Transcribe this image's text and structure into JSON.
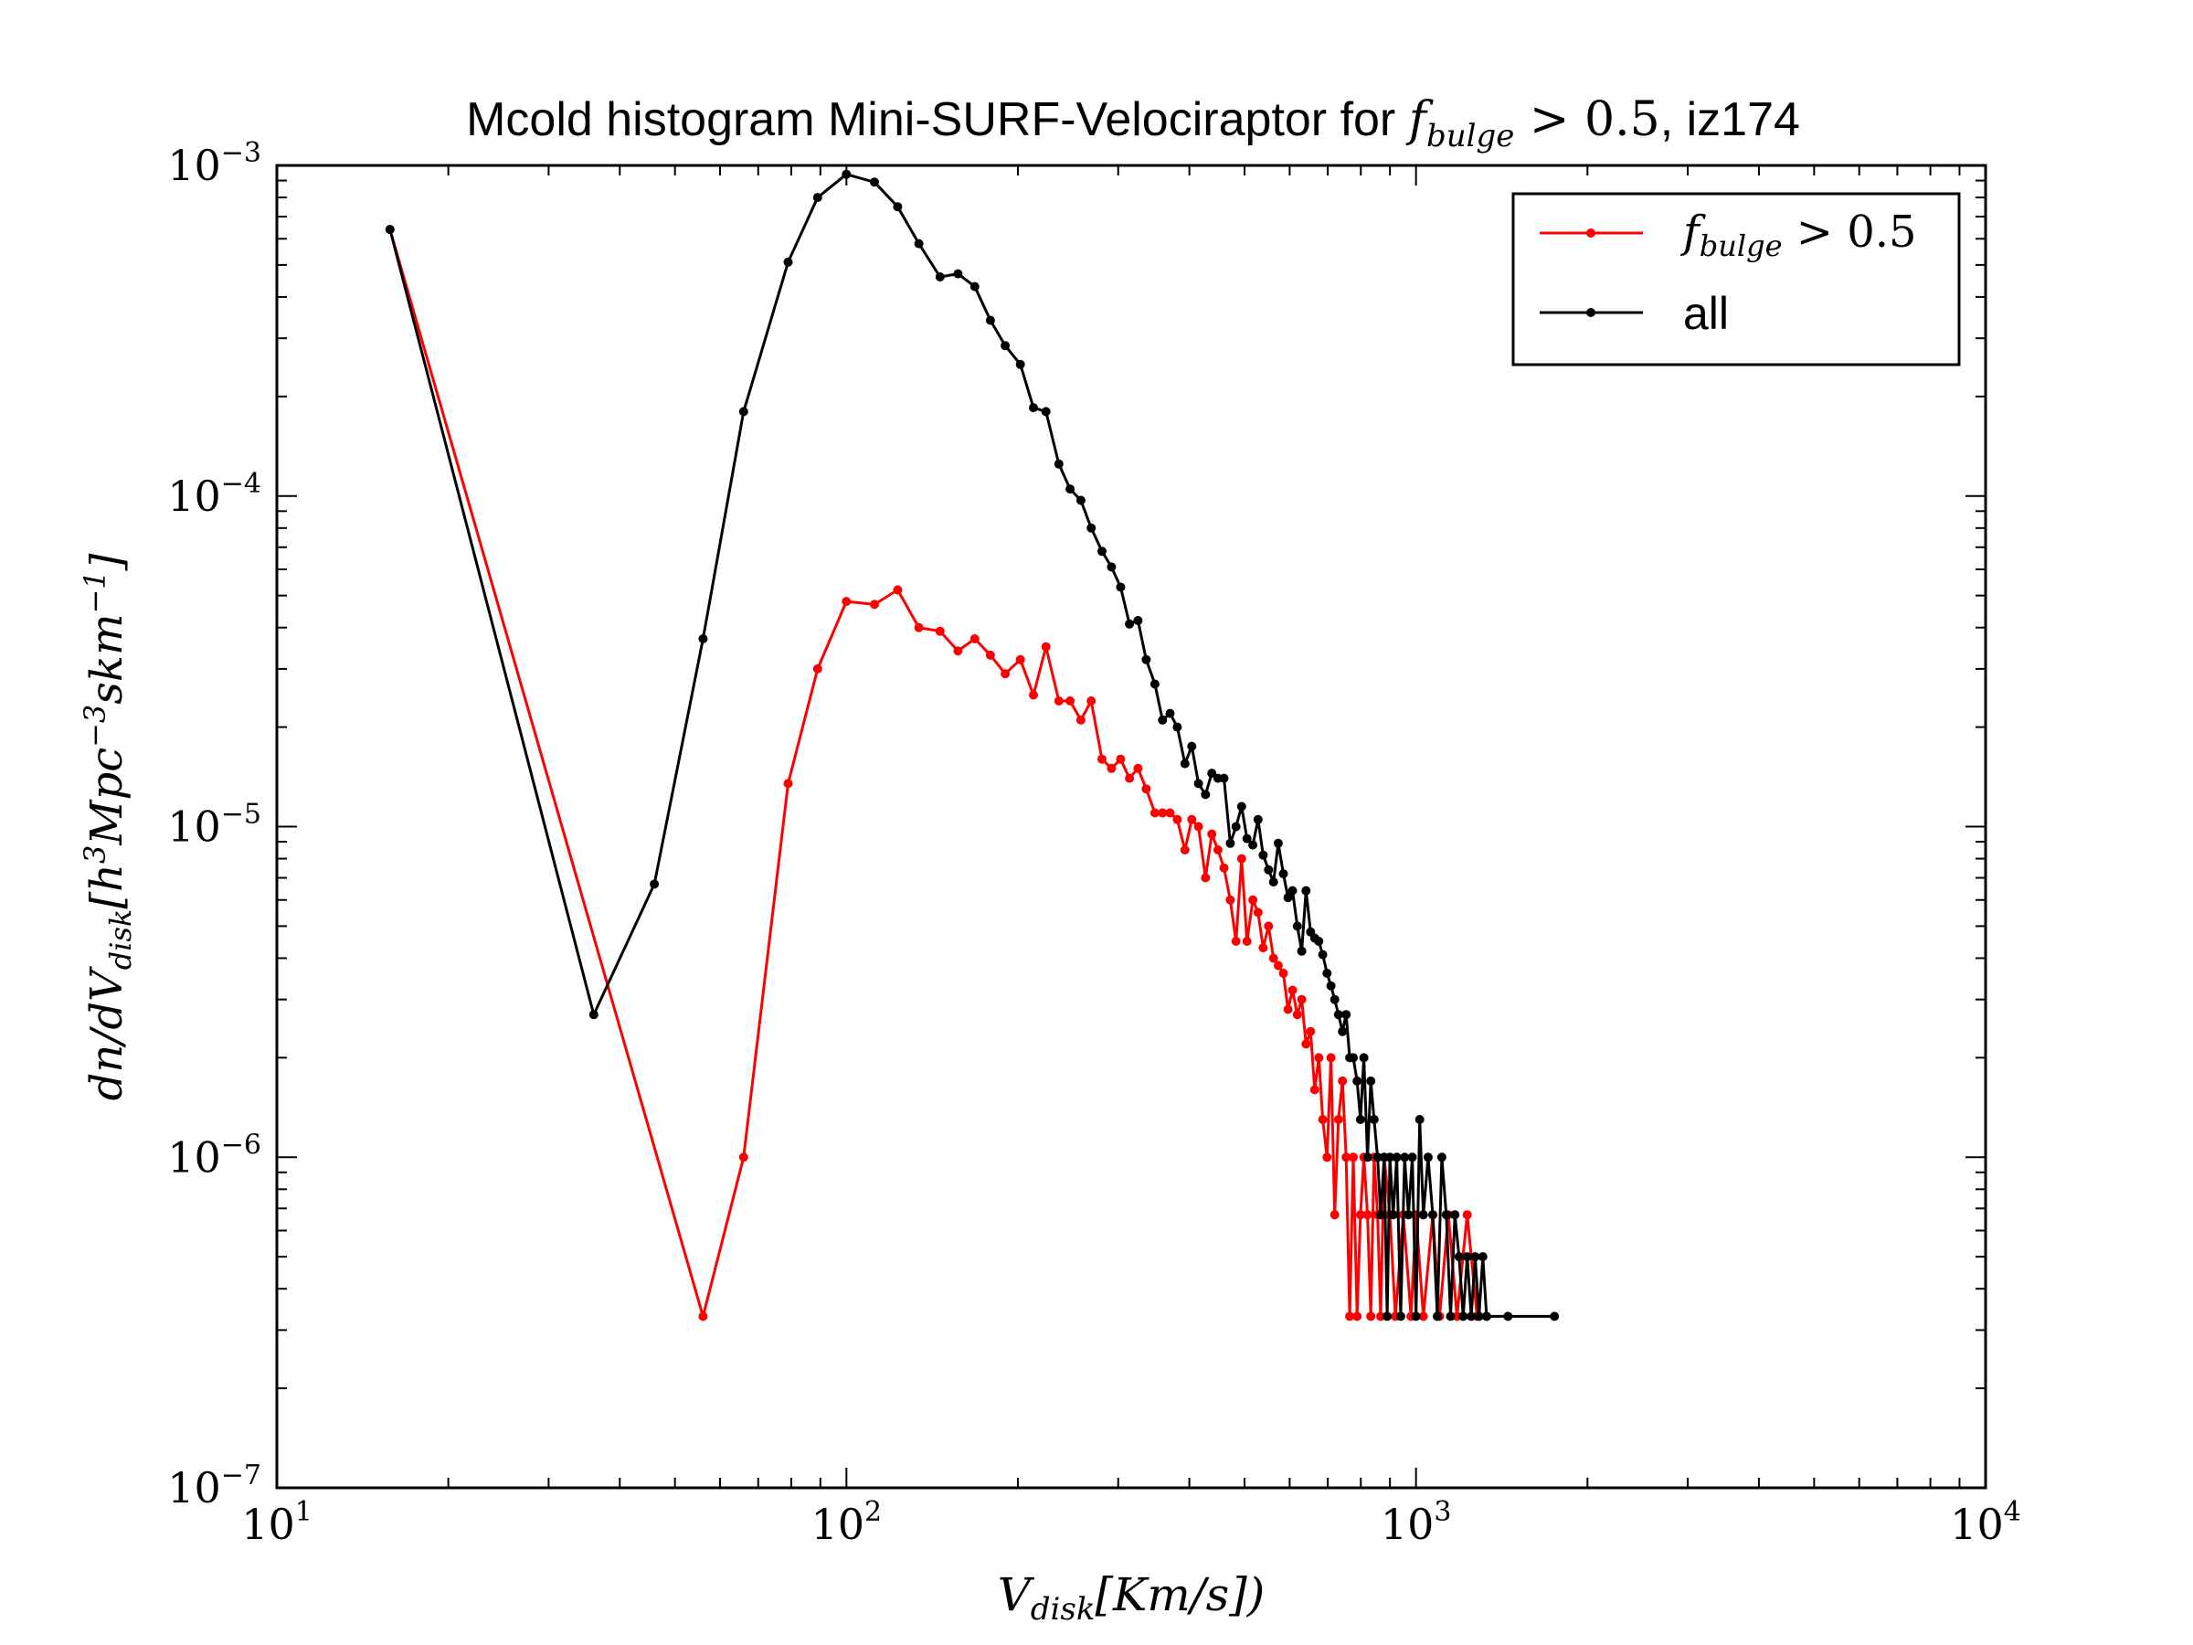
{
  "chart_data": {
    "type": "line",
    "title": {
      "prefix": "Mcold histogram Mini-SURF-Velociraptor for ",
      "math_var": "f",
      "math_sub": "bulge",
      "math_rest": " > 0.5",
      "suffix": ", iz174"
    },
    "xlabel": {
      "var": "V",
      "sub": "disk",
      "rest": "[Km/s])"
    },
    "ylabel": {
      "text": "dn/dV",
      "sub": "disk",
      "open": "[h",
      "sup1": "3",
      "mid": "Mpc",
      "sup2": "−3",
      "mid2": "skm",
      "sup3": "−1",
      "close": "]"
    },
    "xscale": "log",
    "yscale": "log",
    "xlim": [
      10,
      10000
    ],
    "ylim": [
      1e-07,
      0.001
    ],
    "x_ticks": [
      {
        "value": 10,
        "base": "10",
        "exp": "1"
      },
      {
        "value": 100,
        "base": "10",
        "exp": "2"
      },
      {
        "value": 1000,
        "base": "10",
        "exp": "3"
      },
      {
        "value": 10000,
        "base": "10",
        "exp": "4"
      }
    ],
    "y_ticks": [
      {
        "value": 1e-07,
        "base": "10",
        "exp": "−7"
      },
      {
        "value": 1e-06,
        "base": "10",
        "exp": "−6"
      },
      {
        "value": 1e-05,
        "base": "10",
        "exp": "−5"
      },
      {
        "value": 0.0001,
        "base": "10",
        "exp": "−4"
      },
      {
        "value": 0.001,
        "base": "10",
        "exp": "−3"
      }
    ],
    "grid": false,
    "legend_position": "top-right",
    "series": [
      {
        "name_var": "f",
        "name_sub": "bulge",
        "name_rest": " > 0.5",
        "color": "#ff0000",
        "points": [
          [
            15.8,
            0.00064
          ],
          [
            56,
            3.3e-07
          ],
          [
            66,
            1e-06
          ],
          [
            79,
            1.35e-05
          ],
          [
            89,
            3e-05
          ],
          [
            100,
            4.8e-05
          ],
          [
            112,
            4.7e-05
          ],
          [
            123,
            5.2e-05
          ],
          [
            134,
            4e-05
          ],
          [
            146,
            3.9e-05
          ],
          [
            157,
            3.4e-05
          ],
          [
            168,
            3.7e-05
          ],
          [
            179,
            3.3e-05
          ],
          [
            190,
            2.9e-05
          ],
          [
            202,
            3.2e-05
          ],
          [
            213,
            2.5e-05
          ],
          [
            224,
            3.5e-05
          ],
          [
            236,
            2.4e-05
          ],
          [
            247,
            2.4e-05
          ],
          [
            258,
            2.1e-05
          ],
          [
            269,
            2.4e-05
          ],
          [
            281,
            1.6e-05
          ],
          [
            292,
            1.5e-05
          ],
          [
            303,
            1.6e-05
          ],
          [
            314,
            1.4e-05
          ],
          [
            325,
            1.5e-05
          ],
          [
            336,
            1.3e-05
          ],
          [
            348,
            1.1e-05
          ],
          [
            359,
            1.1e-05
          ],
          [
            370,
            1.1e-05
          ],
          [
            381,
            1.05e-05
          ],
          [
            393,
            8.5e-06
          ],
          [
            404,
            1.05e-05
          ],
          [
            415,
            1e-05
          ],
          [
            427,
            7e-06
          ],
          [
            438,
            9.5e-06
          ],
          [
            449,
            8.5e-06
          ],
          [
            460,
            7.5e-06
          ],
          [
            472,
            6e-06
          ],
          [
            483,
            4.5e-06
          ],
          [
            494,
            8e-06
          ],
          [
            505,
            4.5e-06
          ],
          [
            517,
            6e-06
          ],
          [
            528,
            5.5e-06
          ],
          [
            539,
            4.3e-06
          ],
          [
            551,
            5e-06
          ],
          [
            562,
            4e-06
          ],
          [
            573,
            3.8e-06
          ],
          [
            585,
            3.6e-06
          ],
          [
            596,
            2.8e-06
          ],
          [
            607,
            3.2e-06
          ],
          [
            619,
            2.7e-06
          ],
          [
            630,
            3e-06
          ],
          [
            641,
            2.2e-06
          ],
          [
            653,
            2.4e-06
          ],
          [
            664,
            1.6e-06
          ],
          [
            675,
            2e-06
          ],
          [
            686,
            1.3e-06
          ],
          [
            698,
            1e-06
          ],
          [
            709,
            2e-06
          ],
          [
            720,
            6.7e-07
          ],
          [
            731,
            1.3e-06
          ],
          [
            743,
            1.7e-06
          ],
          [
            754,
            1e-06
          ],
          [
            765,
            3.3e-07
          ],
          [
            776,
            1e-06
          ],
          [
            788,
            3.3e-07
          ],
          [
            799,
            6.7e-07
          ],
          [
            810,
            1e-06
          ],
          [
            822,
            6.7e-07
          ],
          [
            833,
            3.3e-07
          ],
          [
            844,
            1e-06
          ],
          [
            856,
            6.7e-07
          ],
          [
            867,
            3.3e-07
          ],
          [
            879,
            1e-06
          ],
          [
            900,
            6.7e-07
          ],
          [
            920,
            3.3e-07
          ],
          [
            950,
            6.7e-07
          ],
          [
            980,
            3.3e-07
          ],
          [
            1000,
            6.7e-07
          ],
          [
            1030,
            3.3e-07
          ],
          [
            1070,
            6.7e-07
          ],
          [
            1100,
            3.3e-07
          ],
          [
            1140,
            6.7e-07
          ],
          [
            1180,
            3.3e-07
          ],
          [
            1230,
            6.7e-07
          ],
          [
            1280,
            3.3e-07
          ],
          [
            1330,
            3.3e-07
          ]
        ]
      },
      {
        "name": "all",
        "color": "#000000",
        "points": [
          [
            15.8,
            0.00064
          ],
          [
            36,
            2.7e-06
          ],
          [
            46,
            6.7e-06
          ],
          [
            56,
            3.7e-05
          ],
          [
            66,
            0.00018
          ],
          [
            79,
            0.00051
          ],
          [
            89,
            0.0008
          ],
          [
            100,
            0.00094
          ],
          [
            112,
            0.00089
          ],
          [
            123,
            0.00075
          ],
          [
            134,
            0.00058
          ],
          [
            146,
            0.00046
          ],
          [
            157,
            0.00047
          ],
          [
            168,
            0.00043
          ],
          [
            179,
            0.00034
          ],
          [
            190,
            0.000285
          ],
          [
            202,
            0.00025
          ],
          [
            213,
            0.000185
          ],
          [
            224,
            0.00018
          ],
          [
            236,
            0.000125
          ],
          [
            247,
            0.000105
          ],
          [
            258,
            9.7e-05
          ],
          [
            269,
            8e-05
          ],
          [
            281,
            6.8e-05
          ],
          [
            292,
            6.1e-05
          ],
          [
            303,
            5.3e-05
          ],
          [
            314,
            4.1e-05
          ],
          [
            325,
            4.2e-05
          ],
          [
            336,
            3.2e-05
          ],
          [
            348,
            2.7e-05
          ],
          [
            359,
            2.1e-05
          ],
          [
            370,
            2.2e-05
          ],
          [
            381,
            2e-05
          ],
          [
            393,
            1.55e-05
          ],
          [
            404,
            1.75e-05
          ],
          [
            415,
            1.35e-05
          ],
          [
            427,
            1.25e-05
          ],
          [
            438,
            1.45e-05
          ],
          [
            449,
            1.4e-05
          ],
          [
            460,
            1.4e-05
          ],
          [
            472,
            8.9e-06
          ],
          [
            483,
            1e-05
          ],
          [
            494,
            1.15e-05
          ],
          [
            505,
            9.2e-06
          ],
          [
            517,
            8.8e-06
          ],
          [
            528,
            1.05e-05
          ],
          [
            539,
            8.2e-06
          ],
          [
            551,
            7.4e-06
          ],
          [
            562,
            6.8e-06
          ],
          [
            573,
            8.9e-06
          ],
          [
            585,
            7.2e-06
          ],
          [
            596,
            6.1e-06
          ],
          [
            607,
            6.4e-06
          ],
          [
            619,
            5e-06
          ],
          [
            630,
            4.2e-06
          ],
          [
            641,
            6.4e-06
          ],
          [
            653,
            4.8e-06
          ],
          [
            664,
            4.6e-06
          ],
          [
            675,
            4.5e-06
          ],
          [
            686,
            4.1e-06
          ],
          [
            698,
            3.6e-06
          ],
          [
            709,
            3.3e-06
          ],
          [
            720,
            3e-06
          ],
          [
            731,
            2.7e-06
          ],
          [
            743,
            2.4e-06
          ],
          [
            754,
            2.7e-06
          ],
          [
            765,
            2e-06
          ],
          [
            776,
            2e-06
          ],
          [
            788,
            1.7e-06
          ],
          [
            799,
            1.3e-06
          ],
          [
            810,
            2e-06
          ],
          [
            822,
            1e-06
          ],
          [
            833,
            1.7e-06
          ],
          [
            844,
            1.3e-06
          ],
          [
            856,
            1e-06
          ],
          [
            867,
            6.7e-07
          ],
          [
            879,
            1e-06
          ],
          [
            890,
            3.3e-07
          ],
          [
            900,
            1e-06
          ],
          [
            912,
            6.7e-07
          ],
          [
            925,
            1e-06
          ],
          [
            940,
            3.3e-07
          ],
          [
            955,
            1e-06
          ],
          [
            970,
            6.7e-07
          ],
          [
            985,
            1e-06
          ],
          [
            1000,
            3.3e-07
          ],
          [
            1015,
            1.3e-06
          ],
          [
            1030,
            6.7e-07
          ],
          [
            1050,
            1e-06
          ],
          [
            1070,
            6.7e-07
          ],
          [
            1090,
            3.3e-07
          ],
          [
            1110,
            1e-06
          ],
          [
            1130,
            6.7e-07
          ],
          [
            1150,
            3.3e-07
          ],
          [
            1170,
            6.7e-07
          ],
          [
            1190,
            5e-07
          ],
          [
            1210,
            3.3e-07
          ],
          [
            1230,
            5e-07
          ],
          [
            1250,
            3.3e-07
          ],
          [
            1270,
            5e-07
          ],
          [
            1290,
            3.3e-07
          ],
          [
            1310,
            5e-07
          ],
          [
            1330,
            3.3e-07
          ],
          [
            1450,
            3.3e-07
          ],
          [
            1750,
            3.3e-07
          ]
        ]
      }
    ]
  }
}
